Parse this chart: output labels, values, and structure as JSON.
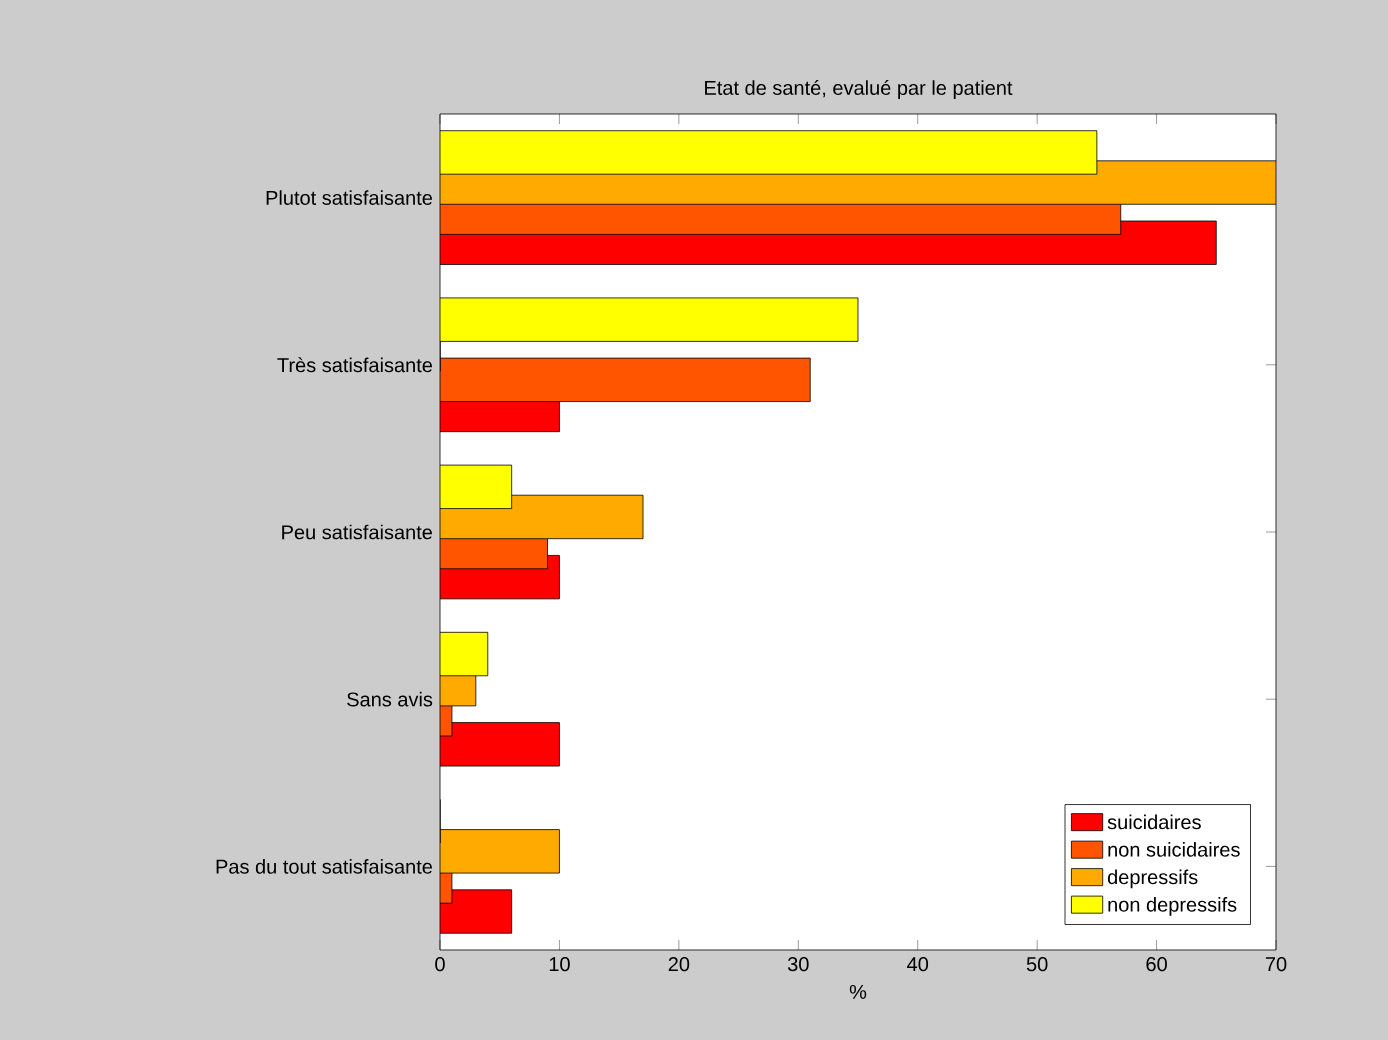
{
  "chart_data": {
    "type": "bar",
    "orientation": "horizontal",
    "title": "Etat de santé, evalué par le patient",
    "xlabel": "%",
    "categories": [
      "Plutot satisfaisante",
      "Très satisfaisante",
      "Peu satisfaisante",
      "Sans avis",
      "Pas du tout satisfaisante"
    ],
    "series": [
      {
        "name": "suicidaires",
        "color": "#ff0000",
        "values": [
          65,
          10,
          10,
          10,
          6
        ]
      },
      {
        "name": "non suicidaires",
        "color": "#ff5500",
        "values": [
          57,
          31,
          9,
          1,
          1
        ]
      },
      {
        "name": "depressifs",
        "color": "#ffaa00",
        "values": [
          70,
          0,
          17,
          3,
          10
        ]
      },
      {
        "name": "non depressifs",
        "color": "#ffff00",
        "values": [
          55,
          35,
          6,
          4,
          0
        ]
      }
    ],
    "xlim": [
      0,
      70
    ],
    "xticks": [
      0,
      10,
      20,
      30,
      40,
      50,
      60,
      70
    ],
    "legend": "bottom right",
    "grid": false
  }
}
